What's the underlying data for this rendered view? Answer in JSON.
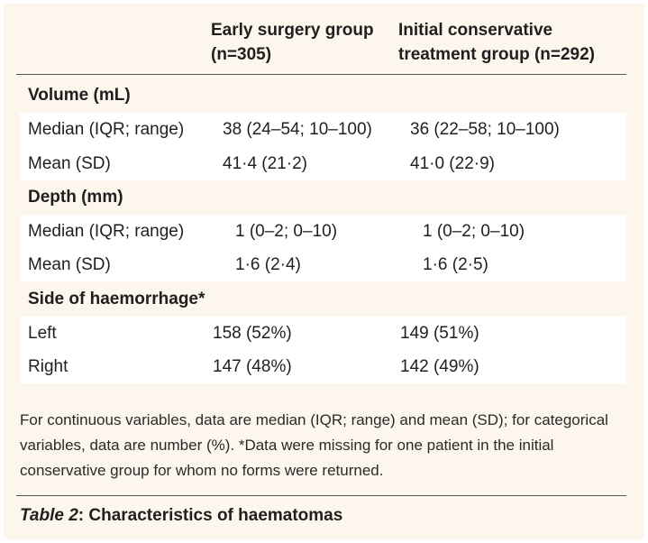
{
  "header": {
    "col1_line1": "Early surgery group",
    "col1_line2": "(n=305)",
    "col2_line1": "Initial conservative",
    "col2_line2": "treatment group (n=292)"
  },
  "sections": {
    "volume": {
      "title": "Volume (mL)",
      "rows": [
        {
          "label": "Median (IQR; range)",
          "early": "38 (24–54; 10–100)",
          "conservative": "36 (22–58; 10–100)"
        },
        {
          "label": "Mean (SD)",
          "early": "41·4 (21·2)",
          "conservative": "41·0 (22·9)"
        }
      ]
    },
    "depth": {
      "title": "Depth (mm)",
      "rows": [
        {
          "label": "Median (IQR; range)",
          "early": "1 (0–2; 0–10)",
          "conservative": "1 (0–2; 0–10)"
        },
        {
          "label": "Mean (SD)",
          "early": "1·6 (2·4)",
          "conservative": "1·6 (2·5)"
        }
      ]
    },
    "side": {
      "title": "Side of haemorrhage*",
      "rows": [
        {
          "label": "Left",
          "early": "158 (52%)",
          "conservative": "149 (51%)"
        },
        {
          "label": "Right",
          "early": "147 (48%)",
          "conservative": "142 (49%)"
        }
      ]
    }
  },
  "footnote": "For continuous variables, data are median (IQR; range) and mean (SD); for categorical variables, data are number (%). *Data were missing for one patient in the initial conservative group for whom no forms were returned.",
  "caption": {
    "label": "Table 2",
    "text": ": Characteristics of haematomas"
  }
}
